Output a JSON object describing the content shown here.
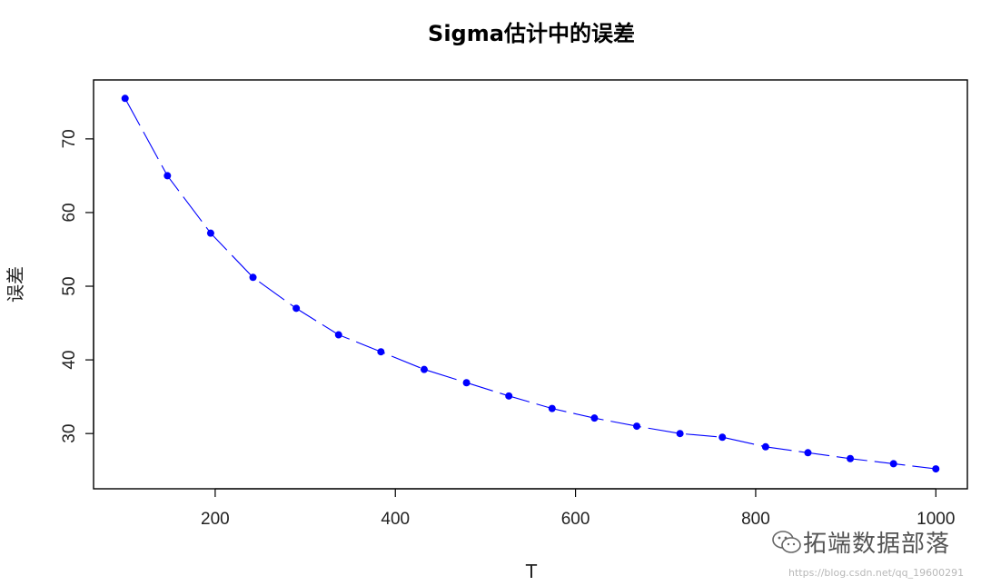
{
  "chart_data": {
    "type": "line",
    "title": "Sigma估计中的误差",
    "xlabel": "T",
    "ylabel": "误差",
    "xlim": [
      65,
      1035
    ],
    "ylim": [
      22.5,
      78
    ],
    "xticks": [
      200,
      400,
      600,
      800,
      1000
    ],
    "yticks": [
      30,
      40,
      50,
      60,
      70
    ],
    "grid": false,
    "line_style": "dashed",
    "colors": {
      "series": "#0000ff",
      "axis": "#000000"
    },
    "series": [
      {
        "x": [
          100,
          147,
          195,
          242,
          290,
          337,
          384,
          432,
          479,
          526,
          574,
          621,
          668,
          716,
          763,
          811,
          858,
          905,
          953,
          1000
        ],
        "values": [
          75.5,
          65.0,
          57.2,
          51.2,
          47.0,
          43.4,
          41.1,
          38.7,
          36.9,
          35.1,
          33.4,
          32.1,
          31.0,
          30.0,
          29.5,
          28.2,
          27.4,
          26.6,
          25.9,
          25.2
        ]
      }
    ]
  },
  "watermark": {
    "icon": "wechat-icon",
    "text": "拓端数据部落",
    "url": "https://blog.csdn.net/qq_19600291"
  }
}
